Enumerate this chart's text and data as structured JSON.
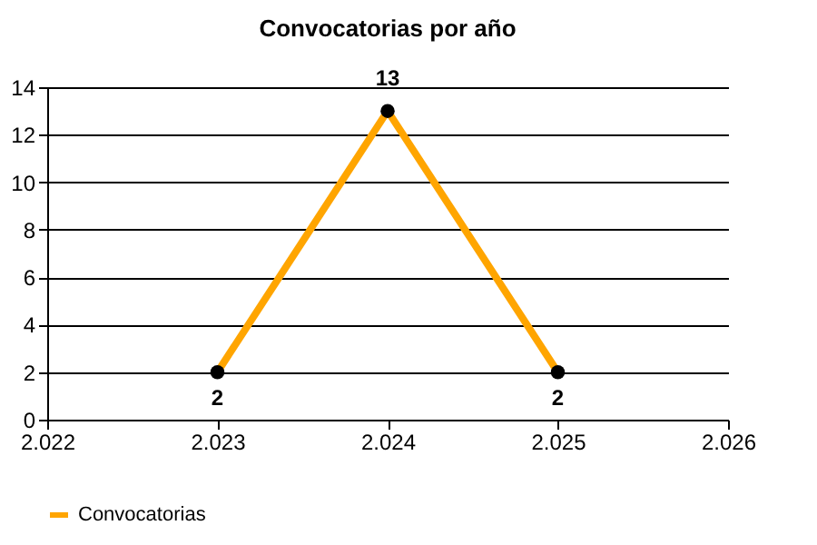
{
  "chart_data": {
    "type": "line",
    "title": "Convocatorias por año",
    "x": [
      2023,
      2024,
      2025
    ],
    "series": [
      {
        "name": "Convocatorias",
        "color": "#ffa500",
        "values": [
          2,
          13,
          2
        ]
      }
    ],
    "xlim": [
      2022,
      2026
    ],
    "xticks": [
      {
        "value": 2022,
        "label": "2.022"
      },
      {
        "value": 2023,
        "label": "2.023"
      },
      {
        "value": 2024,
        "label": "2.024"
      },
      {
        "value": 2025,
        "label": "2.025"
      },
      {
        "value": 2026,
        "label": "2.026"
      }
    ],
    "ylim": [
      0,
      14
    ],
    "yticks": [
      0,
      2,
      4,
      6,
      8,
      10,
      12,
      14
    ],
    "grid": "y",
    "legend": "bottom left",
    "marker": "circle",
    "line_style": "solid",
    "data_labels": true
  }
}
